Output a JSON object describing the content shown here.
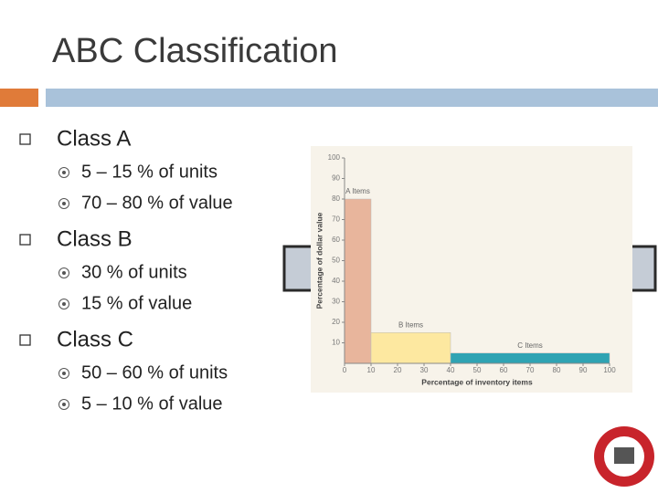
{
  "title": "ABC Classification",
  "bullets": [
    {
      "text": "Class A",
      "items": [
        "5 – 15 % of units",
        "70 – 80 % of value"
      ]
    },
    {
      "text": "Class B",
      "items": [
        "30 % of units",
        "15 % of value"
      ]
    },
    {
      "text": "Class C",
      "items": [
        "50 – 60 % of units",
        "5 – 10 % of value"
      ]
    }
  ],
  "chart_data": {
    "type": "bar",
    "bins": [
      0,
      10,
      40,
      100
    ],
    "categories": [
      "A Items",
      "B Items",
      "C Items"
    ],
    "values": [
      80,
      15,
      5
    ],
    "colors": [
      "#e8b59c",
      "#fde8a0",
      "#2fa3b3"
    ],
    "xlim": [
      0,
      100
    ],
    "ylim": [
      0,
      100
    ],
    "xticks": [
      0,
      10,
      20,
      30,
      40,
      50,
      60,
      70,
      80,
      90,
      100
    ],
    "yticks": [
      10,
      20,
      30,
      40,
      50,
      60,
      70,
      80,
      90,
      100
    ],
    "xlabel": "Percentage of inventory items",
    "ylabel": "Percentage of dollar value"
  }
}
